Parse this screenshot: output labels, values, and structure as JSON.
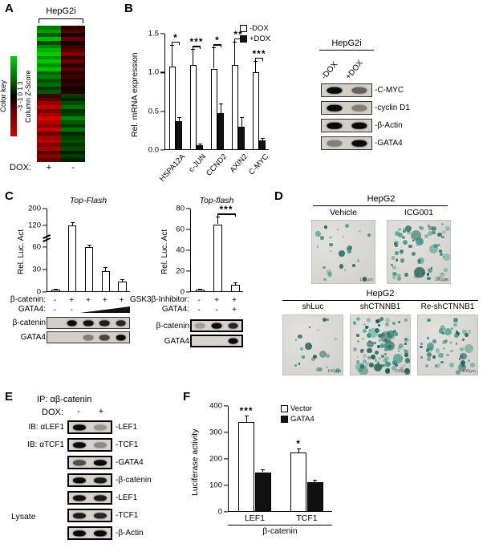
{
  "panelA": {
    "label": "A",
    "title": "HepG2i",
    "colorkey": {
      "title": "Color key",
      "ticks_text": "-3 -1 0 1 3",
      "axis": "Column Z-Score",
      "high_color": "#00cc00",
      "low_color": "#cc0000"
    },
    "dox": {
      "label": "DOX:",
      "plus": "+",
      "minus": "-"
    },
    "heatmap_rows": [
      [
        1.8,
        -0.6
      ],
      [
        2.3,
        -1.1
      ],
      [
        1.4,
        -0.4
      ],
      [
        2.7,
        -1.4
      ],
      [
        1.1,
        -0.3
      ],
      [
        2.0,
        -0.8
      ],
      [
        2.6,
        -1.2
      ],
      [
        3.0,
        -1.8
      ],
      [
        2.2,
        -0.7
      ],
      [
        2.9,
        -1.5
      ],
      [
        2.1,
        -0.6
      ],
      [
        2.8,
        -1.3
      ],
      [
        1.5,
        -0.5
      ],
      [
        1.9,
        -0.9
      ],
      [
        1.2,
        -0.4
      ],
      [
        1.6,
        -0.7
      ],
      [
        0.9,
        -0.2
      ],
      [
        1.3,
        -0.5
      ],
      [
        -0.8,
        0.9
      ],
      [
        -1.3,
        0.5
      ],
      [
        -2.1,
        1.1
      ],
      [
        -2.7,
        1.6
      ],
      [
        -1.7,
        0.7
      ],
      [
        -2.4,
        1.0
      ],
      [
        -3.0,
        1.9
      ],
      [
        -2.5,
        1.3
      ],
      [
        -2.0,
        0.8
      ],
      [
        -2.8,
        1.7
      ],
      [
        -1.5,
        0.6
      ],
      [
        -2.2,
        1.0
      ],
      [
        -2.6,
        1.2
      ],
      [
        -1.8,
        0.8
      ],
      [
        -2.3,
        1.1
      ],
      [
        -1.1,
        0.4
      ],
      [
        -1.9,
        0.9
      ],
      [
        -1.4,
        0.5
      ]
    ]
  },
  "panelB": {
    "label": "B",
    "blot": {
      "title": "HepG2i",
      "lanes": [
        "-DOX",
        "+DOX"
      ],
      "rows": [
        {
          "label": "-C-MYC",
          "bands": [
            1,
            0.55
          ]
        },
        {
          "label": "-cyclin D1",
          "bands": [
            1,
            0.4
          ]
        },
        {
          "label": "-β-Actin",
          "bands": [
            1,
            1
          ]
        },
        {
          "label": "-GATA4",
          "bands": [
            0.4,
            1
          ]
        }
      ]
    }
  },
  "panelC": {
    "label": "C",
    "left": {
      "conditions": [
        {
          "label": "β-catenin:",
          "values": [
            "-",
            "+",
            "+",
            "+",
            "+"
          ]
        },
        {
          "label": "GATA4:",
          "values": [
            "-",
            "-"
          ]
        }
      ],
      "blots": [
        {
          "label": "β-catenin",
          "bands": [
            0.05,
            1,
            0.95,
            0.9,
            0.85
          ]
        },
        {
          "label": "GATA4",
          "bands": [
            0.05,
            0.05,
            0.4,
            0.7,
            1
          ]
        }
      ]
    },
    "right": {
      "conditions": [
        {
          "label": "GSK3β-Inhibitor:",
          "values": [
            "-",
            "+",
            "+"
          ]
        },
        {
          "label": "GATA4:",
          "values": [
            "-",
            "-",
            "+"
          ]
        }
      ],
      "blots": [
        {
          "label": "β-catenin",
          "bands": [
            0.25,
            1,
            0.85
          ]
        },
        {
          "label": "GATA4",
          "bands": [
            0.05,
            0.05,
            1
          ]
        }
      ]
    }
  },
  "panelD": {
    "label": "D",
    "groups": [
      {
        "title": "HepG2",
        "images": [
          {
            "name": "Vehicle",
            "spots": 25,
            "seed": 7
          },
          {
            "name": "ICG001",
            "spots": 70,
            "seed": 13
          }
        ]
      },
      {
        "title": "HepG2",
        "images": [
          {
            "name": "shLuc",
            "spots": 20,
            "seed": 3
          },
          {
            "name": "shCTNNB1",
            "spots": 100,
            "seed": 29
          },
          {
            "name": "Re-shCTNNB1",
            "spots": 55,
            "seed": 41
          }
        ]
      }
    ],
    "scalebar": "100μm",
    "stain_colors": [
      "#2f8f7d",
      "#1f6e62",
      "#45a28f",
      "#17574c"
    ]
  },
  "panelE": {
    "label": "E",
    "ip_label": "IP:  αβ-catenin",
    "dox_label": "DOX:",
    "lanes": [
      "-",
      "+"
    ],
    "rows": [
      {
        "left": "IB: αLEF1",
        "right": "-LEF1",
        "bands": [
          1,
          0.3
        ]
      },
      {
        "left": "IB: αTCF1",
        "right": "-TCF1",
        "bands": [
          1,
          0.35
        ]
      },
      {
        "left": "",
        "right": "-GATA4",
        "bands": [
          0.65,
          1
        ]
      },
      {
        "left": "",
        "right": "-β-catenin",
        "bands": [
          1,
          0.9
        ]
      }
    ],
    "lysate_label": "Lysate",
    "lysate_rows": [
      {
        "right": "-LEF1",
        "bands": [
          0.95,
          0.9
        ]
      },
      {
        "right": "-TCF1",
        "bands": [
          0.9,
          0.85
        ]
      },
      {
        "right": "-β-Actin",
        "bands": [
          1,
          1
        ]
      }
    ]
  },
  "panelF": {
    "label": "F"
  },
  "chart_data": [
    {
      "id": "panel-b-mrna",
      "type": "bar",
      "ylabel": "Rel. mRNA expression",
      "categories": [
        "HSPA12A",
        "c-JUN",
        "CCND2",
        "AXIN2",
        "C-MYC"
      ],
      "series": [
        {
          "name": "-DOX",
          "fill": "#ffffff",
          "values": [
            1.08,
            1.1,
            1.05,
            1.1,
            1.0
          ]
        },
        {
          "name": "+DOX",
          "fill": "#111111",
          "values": [
            0.37,
            0.06,
            0.48,
            0.3,
            0.12
          ]
        }
      ],
      "errors": [
        [
          0.28,
          0.2,
          0.27,
          0.3,
          0.15
        ],
        [
          0.05,
          0.02,
          0.12,
          0.12,
          0.04
        ]
      ],
      "group_sig": [
        "*",
        "***",
        "*",
        "**",
        "***"
      ],
      "ylim": [
        0,
        1.5
      ],
      "yticks": [
        {
          "v": 0,
          "t": "0.0"
        },
        {
          "v": 0.5,
          "t": "0.5"
        },
        {
          "v": 1,
          "t": "1.0"
        },
        {
          "v": 1.5,
          "t": "1.5"
        }
      ],
      "xtick_rotate": true,
      "legend": [
        "-DOX",
        "+DOX"
      ],
      "legend_pos": "top-right"
    },
    {
      "id": "panel-c-topflash-left",
      "type": "bar",
      "title": "Top-Flash",
      "ylabel": "Rel. Luc. Act",
      "values": [
        3,
        120,
        60,
        28,
        14
      ],
      "errors": [
        1,
        14,
        6,
        5,
        3
      ],
      "ylim": [
        0,
        200
      ],
      "yticks": [
        {
          "v": 0,
          "t": "0"
        },
        {
          "v": 30,
          "t": "30"
        },
        {
          "v": 60,
          "t": "60"
        },
        {
          "v": 120,
          "t": "120"
        },
        {
          "v": 200,
          "t": "200"
        }
      ],
      "scale": [
        {
          "v": 0,
          "f": 0
        },
        {
          "v": 60,
          "f": 0.54
        },
        {
          "v": 120,
          "f": 0.8
        },
        {
          "v": 200,
          "f": 1
        }
      ],
      "axis_break": 0.67,
      "bar_fill": "#ffffff"
    },
    {
      "id": "panel-c-topflash-right",
      "type": "bar",
      "title": "Top-flash",
      "ylabel": "Rel. Luc. Act",
      "values": [
        2,
        65,
        7
      ],
      "errors": [
        1,
        7,
        2
      ],
      "ylim": [
        0,
        80
      ],
      "yticks": [
        {
          "v": 0,
          "t": "0"
        },
        {
          "v": 20,
          "t": "20"
        },
        {
          "v": 40,
          "t": "40"
        },
        {
          "v": 60,
          "t": "60"
        },
        {
          "v": 80,
          "t": "80"
        }
      ],
      "sig": [
        {
          "bars": [
            1,
            2
          ],
          "label": "***"
        }
      ],
      "bar_fill": "#ffffff"
    },
    {
      "id": "panel-f-luciferase",
      "type": "bar",
      "ylabel": "Luciferase activity",
      "xlabel": "β-catenin",
      "categories": [
        "LEF1",
        "TCF1"
      ],
      "series": [
        {
          "name": "Vector",
          "fill": "#ffffff",
          "values": [
            340,
            225
          ]
        },
        {
          "name": "GATA4",
          "fill": "#111111",
          "values": [
            150,
            112
          ]
        }
      ],
      "errors": [
        [
          25,
          15
        ],
        [
          12,
          8
        ]
      ],
      "group_sig": [
        "***",
        "*"
      ],
      "sig_bracket": false,
      "ylim": [
        0,
        400
      ],
      "yticks": [
        {
          "v": 0,
          "t": "0"
        },
        {
          "v": 100,
          "t": "100"
        },
        {
          "v": 200,
          "t": "200"
        },
        {
          "v": 300,
          "t": "300"
        },
        {
          "v": 400,
          "t": "400"
        }
      ],
      "legend": [
        "Vector",
        "GATA4"
      ]
    }
  ]
}
